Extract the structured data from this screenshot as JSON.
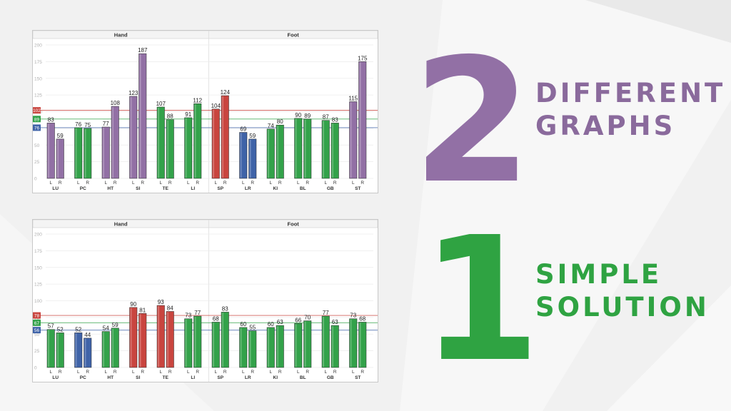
{
  "colors": {
    "purple": "#9270a5",
    "green": "#33a24a",
    "red": "#c9453f",
    "blue": "#3f63a8"
  },
  "headline_top": {
    "number": "2",
    "line1": "DIFFERENT",
    "line2": "GRAPHS"
  },
  "headline_bottom": {
    "number": "1",
    "line1": "SIMPLE",
    "line2": "SOLUTION"
  },
  "chart_data": [
    {
      "type": "bar",
      "sections": [
        "Hand",
        "Foot"
      ],
      "categories": [
        "LU",
        "PC",
        "HT",
        "SI",
        "TE",
        "LI",
        "SP",
        "LR",
        "KI",
        "BL",
        "GB",
        "ST"
      ],
      "side_labels": [
        "L",
        "R"
      ],
      "yticks": [
        0,
        25,
        50,
        75,
        100,
        125,
        150,
        175,
        200
      ],
      "ylim": [
        0,
        200
      ],
      "series": [
        {
          "name": "L",
          "values": [
            83,
            76,
            77,
            123,
            107,
            91,
            104,
            69,
            74,
            90,
            87,
            115
          ]
        },
        {
          "name": "R",
          "values": [
            59,
            75,
            108,
            187,
            88,
            112,
            124,
            59,
            80,
            89,
            83,
            175
          ]
        }
      ],
      "bar_colors": [
        [
          "purple",
          "purple"
        ],
        [
          "green",
          "green"
        ],
        [
          "purple",
          "purple"
        ],
        [
          "purple",
          "purple"
        ],
        [
          "green",
          "green"
        ],
        [
          "green",
          "green"
        ],
        [
          "red",
          "red"
        ],
        [
          "blue",
          "blue"
        ],
        [
          "green",
          "green"
        ],
        [
          "green",
          "green"
        ],
        [
          "green",
          "green"
        ],
        [
          "purple",
          "purple"
        ]
      ],
      "reference_lines": [
        {
          "value": 102,
          "color": "red"
        },
        {
          "value": 89,
          "color": "green"
        },
        {
          "value": 76,
          "color": "blue"
        }
      ]
    },
    {
      "type": "bar",
      "sections": [
        "Hand",
        "Foot"
      ],
      "categories": [
        "LU",
        "PC",
        "HT",
        "SI",
        "TE",
        "LI",
        "SP",
        "LR",
        "KI",
        "BL",
        "GB",
        "ST"
      ],
      "side_labels": [
        "L",
        "R"
      ],
      "yticks": [
        0,
        25,
        50,
        75,
        100,
        125,
        150,
        175,
        200
      ],
      "ylim": [
        0,
        200
      ],
      "series": [
        {
          "name": "L",
          "values": [
            57,
            52,
            54,
            90,
            93,
            73,
            68,
            60,
            60,
            66,
            77,
            73
          ]
        },
        {
          "name": "R",
          "values": [
            52,
            44,
            59,
            81,
            84,
            77,
            83,
            55,
            63,
            70,
            63,
            68
          ]
        }
      ],
      "bar_colors": [
        [
          "green",
          "green"
        ],
        [
          "blue",
          "blue"
        ],
        [
          "green",
          "green"
        ],
        [
          "red",
          "red"
        ],
        [
          "red",
          "red"
        ],
        [
          "green",
          "green"
        ],
        [
          "green",
          "green"
        ],
        [
          "green",
          "green"
        ],
        [
          "green",
          "green"
        ],
        [
          "green",
          "green"
        ],
        [
          "green",
          "green"
        ],
        [
          "green",
          "green"
        ]
      ],
      "reference_lines": [
        {
          "value": 78,
          "color": "red"
        },
        {
          "value": 67,
          "color": "green"
        },
        {
          "value": 56,
          "color": "blue"
        }
      ]
    }
  ]
}
